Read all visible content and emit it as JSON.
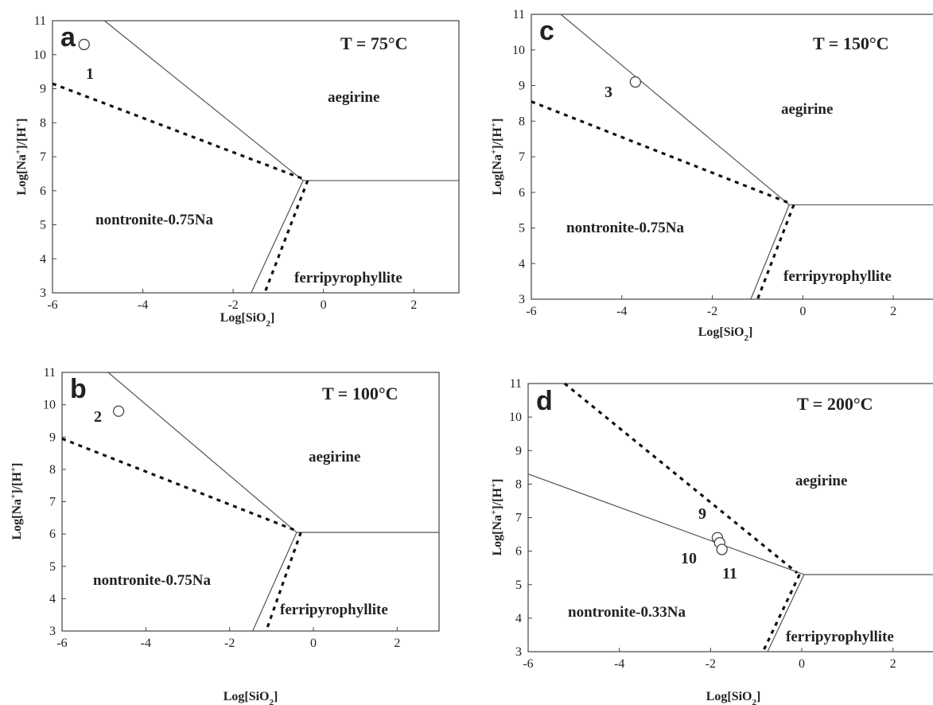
{
  "chart_data": [
    {
      "panel": "a",
      "type": "line",
      "temperature": "T = 75°C",
      "xlabel": "Log[SiO2]",
      "ylabel": "Log[Na+]/[H+]",
      "xlim": [
        -6,
        3
      ],
      "ylim": [
        3,
        11
      ],
      "xticks": [
        "-6",
        "-4",
        "-2",
        "0",
        "2"
      ],
      "yticks": [
        "3",
        "4",
        "5",
        "6",
        "7",
        "8",
        "9",
        "10",
        "11"
      ],
      "regions": [
        "aegirine",
        "nontronite-0.75Na",
        "ferripyrophyllite"
      ],
      "solid_lines": [
        [
          [
            -4.85,
            11
          ],
          [
            -0.45,
            6.3
          ]
        ],
        [
          [
            -0.45,
            6.3
          ],
          [
            3,
            6.3
          ]
        ],
        [
          [
            -0.45,
            6.3
          ],
          [
            -1.6,
            3
          ]
        ]
      ],
      "dashed_lines": [
        [
          [
            -6,
            9.15
          ],
          [
            -0.45,
            6.35
          ]
        ],
        [
          [
            -0.35,
            6.3
          ],
          [
            -1.3,
            3
          ]
        ]
      ],
      "points": [
        {
          "label": "1",
          "x": -5.3,
          "y": 10.3
        }
      ]
    },
    {
      "panel": "b",
      "type": "line",
      "temperature": "T = 100°C",
      "xlabel": "Log[SiO2]",
      "ylabel": "Log[Na+]/[H+]",
      "xlim": [
        -6,
        3
      ],
      "ylim": [
        3,
        11
      ],
      "xticks": [
        "-6",
        "-4",
        "-2",
        "0",
        "2"
      ],
      "yticks": [
        "3",
        "4",
        "5",
        "6",
        "7",
        "8",
        "9",
        "10",
        "11"
      ],
      "regions": [
        "aegirine",
        "nontronite-0.75Na",
        "ferripyrophyllite"
      ],
      "solid_lines": [
        [
          [
            -4.9,
            11
          ],
          [
            -0.4,
            6.05
          ]
        ],
        [
          [
            -0.4,
            6.05
          ],
          [
            3,
            6.05
          ]
        ],
        [
          [
            -0.4,
            6.05
          ],
          [
            -1.45,
            3
          ]
        ]
      ],
      "dashed_lines": [
        [
          [
            -6,
            8.95
          ],
          [
            -0.4,
            6.1
          ]
        ],
        [
          [
            -0.3,
            6.05
          ],
          [
            -1.1,
            3.1
          ]
        ]
      ],
      "points": [
        {
          "label": "2",
          "x": -4.65,
          "y": 9.8
        }
      ]
    },
    {
      "panel": "c",
      "type": "line",
      "temperature": "T = 150°C",
      "xlabel": "Log[SiO2]",
      "ylabel": "Log[Na+]/[H+]",
      "xlim": [
        -6,
        3
      ],
      "ylim": [
        3,
        11
      ],
      "xticks": [
        "-6",
        "-4",
        "-2",
        "0",
        "2"
      ],
      "yticks": [
        "3",
        "4",
        "5",
        "6",
        "7",
        "8",
        "9",
        "10",
        "11"
      ],
      "regions": [
        "aegirine",
        "nontronite-0.75Na",
        "ferripyrophyllite"
      ],
      "solid_lines": [
        [
          [
            -5.35,
            11
          ],
          [
            -0.3,
            5.65
          ]
        ],
        [
          [
            -0.3,
            5.65
          ],
          [
            3,
            5.65
          ]
        ],
        [
          [
            -0.3,
            5.65
          ],
          [
            -1.15,
            3
          ]
        ]
      ],
      "dashed_lines": [
        [
          [
            -6,
            8.55
          ],
          [
            -0.3,
            5.7
          ]
        ],
        [
          [
            -0.2,
            5.65
          ],
          [
            -1.0,
            3
          ]
        ]
      ],
      "points": [
        {
          "label": "3",
          "x": -3.7,
          "y": 9.1
        }
      ]
    },
    {
      "panel": "d",
      "type": "line",
      "temperature": "T = 200°C",
      "xlabel": "Log[SiO2]",
      "ylabel": "Log[Na+]/[H+]",
      "xlim": [
        -6,
        3
      ],
      "ylim": [
        3,
        11
      ],
      "xticks": [
        "-6",
        "-4",
        "-2",
        "0",
        "2"
      ],
      "yticks": [
        "3",
        "4",
        "5",
        "6",
        "7",
        "8",
        "9",
        "10",
        "11"
      ],
      "regions": [
        "aegirine",
        "nontronite-0.33Na",
        "ferripyrophyllite"
      ],
      "solid_lines": [
        [
          [
            -6,
            8.3
          ],
          [
            0.05,
            5.3
          ]
        ],
        [
          [
            0.05,
            5.3
          ],
          [
            3,
            5.3
          ]
        ],
        [
          [
            0.05,
            5.3
          ],
          [
            -0.75,
            3
          ]
        ]
      ],
      "dashed_lines": [
        [
          [
            -5.2,
            11
          ],
          [
            -0.1,
            5.35
          ]
        ],
        [
          [
            -0.05,
            5.3
          ],
          [
            -0.85,
            3
          ]
        ]
      ],
      "points": [
        {
          "label": "9",
          "x": -1.85,
          "y": 6.4
        },
        {
          "label": "10",
          "x": -1.8,
          "y": 6.25
        },
        {
          "label": "11",
          "x": -1.75,
          "y": 6.05
        }
      ]
    }
  ]
}
